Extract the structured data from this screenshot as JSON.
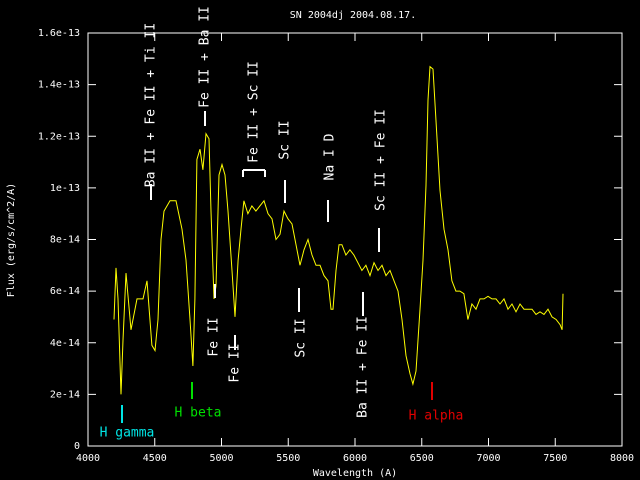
{
  "chart_data": {
    "type": "line",
    "title": "SN 2004dj  2004.08.17.",
    "x_label": "Wavelength (A)",
    "y_label": "Flux (erg/s/cm^2/A)",
    "xlim": [
      4000,
      8000
    ],
    "ylim": [
      0,
      1.6e-13
    ],
    "xticks": [
      4000,
      4500,
      5000,
      5500,
      6000,
      6500,
      7000,
      7500,
      8000
    ],
    "yticks": [
      0,
      2e-14,
      4e-14,
      6e-14,
      8e-14,
      1e-13,
      1.2e-13,
      1.4e-13,
      1.6e-13
    ],
    "color": "#ffff00",
    "x": [
      4195,
      4210,
      4225,
      4247,
      4262,
      4285,
      4322,
      4367,
      4412,
      4442,
      4479,
      4502,
      4524,
      4547,
      4569,
      4614,
      4659,
      4704,
      4734,
      4764,
      4786,
      4801,
      4816,
      4839,
      4861,
      4884,
      4906,
      4921,
      4944,
      4959,
      4981,
      5004,
      5026,
      5049,
      5079,
      5101,
      5124,
      5146,
      5168,
      5198,
      5228,
      5258,
      5288,
      5318,
      5348,
      5378,
      5408,
      5438,
      5468,
      5498,
      5528,
      5558,
      5588,
      5618,
      5648,
      5678,
      5708,
      5738,
      5768,
      5798,
      5820,
      5835,
      5858,
      5880,
      5902,
      5932,
      5962,
      5992,
      6022,
      6052,
      6082,
      6112,
      6142,
      6172,
      6202,
      6232,
      6262,
      6292,
      6322,
      6352,
      6382,
      6412,
      6434,
      6457,
      6487,
      6509,
      6532,
      6547,
      6562,
      6584,
      6607,
      6637,
      6667,
      6697,
      6726,
      6756,
      6786,
      6816,
      6846,
      6876,
      6906,
      6936,
      6966,
      6996,
      7026,
      7056,
      7086,
      7116,
      7146,
      7176,
      7206,
      7236,
      7266,
      7296,
      7326,
      7356,
      7386,
      7416,
      7446,
      7476,
      7506,
      7536,
      7551,
      7558
    ],
    "values": [
      4.9e-14,
      6.9e-14,
      5.7e-14,
      2e-14,
      4.1e-14,
      6.7e-14,
      4.5e-14,
      5.7e-14,
      5.7e-14,
      6.4e-14,
      3.9e-14,
      3.7e-14,
      4.9e-14,
      8e-14,
      9.1e-14,
      9.5e-14,
      9.5e-14,
      8.4e-14,
      7.2e-14,
      4.9e-14,
      3.1e-14,
      5.7e-14,
      1.11e-13,
      1.15e-13,
      1.07e-13,
      1.21e-13,
      1.19e-13,
      9.1e-14,
      5.7e-14,
      6.2e-14,
      1.05e-13,
      1.09e-13,
      1.05e-13,
      9.1e-14,
      6.8e-14,
      5e-14,
      7.2e-14,
      8.4e-14,
      9.5e-14,
      9e-14,
      9.3e-14,
      9.1e-14,
      9.3e-14,
      9.5e-14,
      9e-14,
      8.8e-14,
      8e-14,
      8.2e-14,
      9.1e-14,
      8.8e-14,
      8.6e-14,
      7.8e-14,
      7e-14,
      7.6e-14,
      8e-14,
      7.4e-14,
      7e-14,
      7e-14,
      6.6e-14,
      6.4e-14,
      5.3e-14,
      5.3e-14,
      6.8e-14,
      7.8e-14,
      7.8e-14,
      7.4e-14,
      7.6e-14,
      7.4e-14,
      7.1e-14,
      6.8e-14,
      7e-14,
      6.6e-14,
      7.1e-14,
      6.8e-14,
      7e-14,
      6.6e-14,
      6.8e-14,
      6.4e-14,
      6e-14,
      4.9e-14,
      3.5e-14,
      2.8e-14,
      2.4e-14,
      2.9e-14,
      5.3e-14,
      7.2e-14,
      1.01e-13,
      1.34e-13,
      1.47e-13,
      1.46e-13,
      1.26e-13,
      9.9e-14,
      8.4e-14,
      7.6e-14,
      6.4e-14,
      6e-14,
      6e-14,
      5.9e-14,
      4.9e-14,
      5.5e-14,
      5.3e-14,
      5.7e-14,
      5.7e-14,
      5.8e-14,
      5.7e-14,
      5.7e-14,
      5.5e-14,
      5.7e-14,
      5.3e-14,
      5.5e-14,
      5.2e-14,
      5.5e-14,
      5.3e-14,
      5.3e-14,
      5.3e-14,
      5.1e-14,
      5.2e-14,
      5.1e-14,
      5.3e-14,
      5e-14,
      4.9e-14,
      4.7e-14,
      4.5e-14,
      5.9e-14
    ],
    "annotations": [
      {
        "text": "Ba II + Fe II + Ti II",
        "color": "#ffffff"
      },
      {
        "text": "Fe II + Ba II",
        "color": "#ffffff"
      },
      {
        "text": "Fe II + Sc II",
        "color": "#ffffff"
      },
      {
        "text": "Sc II",
        "color": "#ffffff"
      },
      {
        "text": "Na I D",
        "color": "#ffffff"
      },
      {
        "text": "Sc II + Fe II",
        "color": "#ffffff"
      },
      {
        "text": "Fe II",
        "color": "#ffffff"
      },
      {
        "text": "Fe II",
        "color": "#ffffff"
      },
      {
        "text": "Sc II",
        "color": "#ffffff"
      },
      {
        "text": "Ba II + Fe II",
        "color": "#ffffff"
      },
      {
        "text": "H gamma",
        "color": "#00e5e5"
      },
      {
        "text": "H beta",
        "color": "#00e000"
      },
      {
        "text": "H alpha",
        "color": "#e00000"
      }
    ]
  }
}
